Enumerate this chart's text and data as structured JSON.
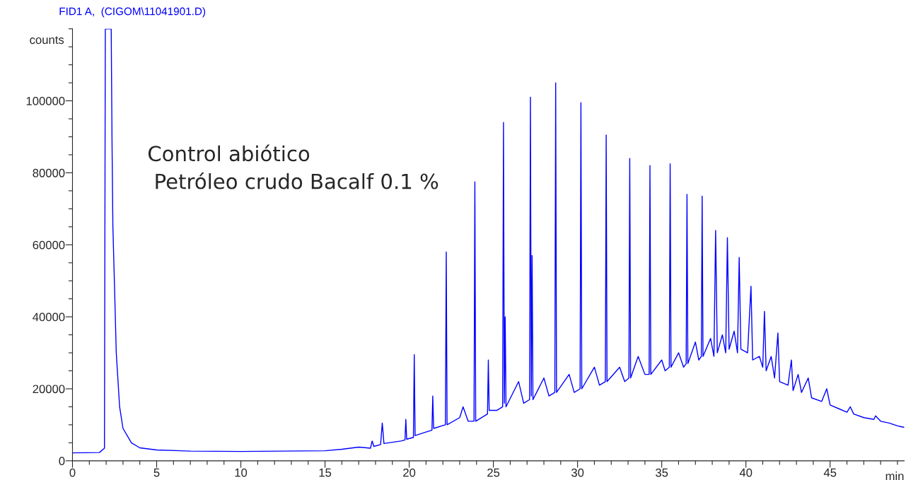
{
  "chart_data": {
    "type": "line",
    "title": "FID1 A,  (CIGOM\\11041901.D)",
    "xlabel": "min",
    "ylabel": "counts",
    "annotations": [
      "Control abiótico\n Petróleo crudo Bacalf 0.1 %"
    ],
    "series": [
      {
        "color": "#0000ff",
        "x": [
          0,
          1.6,
          1.9,
          1.95,
          2.0,
          2.3,
          2.35,
          2.4,
          2.5,
          2.6,
          2.8,
          3.0,
          3.5,
          4.0,
          5.0,
          7.0,
          10.0,
          15.0,
          16.0,
          17.0,
          17.7,
          17.8,
          17.9,
          18.3,
          18.4,
          18.5,
          19.5,
          19.75,
          19.8,
          19.85,
          20.25,
          20.3,
          20.35,
          21.0,
          21.35,
          21.4,
          21.45,
          22.15,
          22.2,
          22.25,
          23.0,
          23.2,
          23.5,
          23.85,
          23.9,
          23.95,
          24.65,
          24.7,
          24.75,
          25.2,
          25.55,
          25.6,
          25.65,
          25.7,
          25.75,
          26.5,
          26.8,
          27.15,
          27.2,
          27.25,
          27.3,
          27.35,
          28.0,
          28.3,
          28.65,
          28.7,
          28.75,
          29.5,
          29.8,
          30.15,
          30.2,
          30.25,
          31.0,
          31.3,
          31.65,
          31.7,
          31.75,
          32.5,
          32.8,
          33.05,
          33.1,
          33.15,
          33.6,
          34.0,
          34.25,
          34.3,
          34.35,
          35.0,
          35.2,
          35.45,
          35.5,
          35.55,
          36.0,
          36.3,
          36.45,
          36.5,
          36.55,
          37.0,
          37.2,
          37.35,
          37.4,
          37.45,
          37.9,
          38.1,
          38.2,
          38.3,
          38.6,
          38.8,
          38.9,
          39.0,
          39.3,
          39.5,
          39.6,
          39.7,
          40.1,
          40.3,
          40.4,
          40.8,
          41.0,
          41.1,
          41.2,
          41.5,
          41.7,
          41.9,
          42.0,
          42.5,
          42.7,
          42.8,
          43.1,
          43.3,
          43.7,
          43.9,
          44.5,
          44.8,
          45.0,
          45.5,
          46.0,
          46.2,
          46.4,
          47.0,
          47.6,
          47.7,
          48.0,
          48.5,
          49.0,
          49.4
        ],
        "values": [
          2200,
          2300,
          3500,
          120000,
          120000,
          120000,
          88000,
          65000,
          48000,
          30000,
          15000,
          9000,
          5000,
          3600,
          3000,
          2700,
          2600,
          2800,
          3200,
          3800,
          3500,
          5500,
          4000,
          4500,
          10500,
          4800,
          5500,
          5800,
          11500,
          6000,
          6500,
          29500,
          7000,
          8000,
          8500,
          18000,
          9000,
          10000,
          58000,
          10000,
          12000,
          15000,
          11000,
          11000,
          77500,
          11000,
          13000,
          28000,
          14000,
          14000,
          15000,
          94000,
          16000,
          40000,
          15000,
          22000,
          16000,
          17000,
          101000,
          18000,
          57000,
          17000,
          23000,
          18000,
          19000,
          105000,
          19000,
          24000,
          19000,
          20000,
          99500,
          20000,
          26000,
          21000,
          22000,
          90500,
          22000,
          26000,
          22000,
          23000,
          84000,
          23000,
          29000,
          24000,
          24000,
          82000,
          24000,
          28000,
          25000,
          26000,
          82500,
          26000,
          30000,
          26000,
          27000,
          74000,
          27000,
          33000,
          28000,
          29000,
          73500,
          29000,
          34000,
          29000,
          64000,
          30000,
          35000,
          30000,
          62000,
          31000,
          36000,
          30000,
          56500,
          31000,
          30000,
          48500,
          28000,
          29000,
          26000,
          41500,
          25000,
          29000,
          23000,
          35500,
          22000,
          21000,
          28000,
          19500,
          24000,
          19000,
          23000,
          17500,
          16500,
          20000,
          15500,
          14500,
          13500,
          15000,
          13000,
          12000,
          11500,
          12500,
          11000,
          10500,
          9700,
          9300
        ]
      }
    ],
    "xlim": [
      0,
      49.4
    ],
    "xticks": [
      0,
      {
        "value": 1,
        "label": null
      },
      {
        "value": 2,
        "label": null
      },
      {
        "value": 3,
        "label": null
      },
      {
        "value": 4,
        "label": null
      },
      5,
      {
        "value": 6,
        "label": null
      },
      {
        "value": 7,
        "label": null
      },
      {
        "value": 8,
        "label": null
      },
      {
        "value": 9,
        "label": null
      },
      10,
      {
        "value": 11,
        "label": null
      },
      {
        "value": 12,
        "label": null
      },
      {
        "value": 13,
        "label": null
      },
      {
        "value": 14,
        "label": null
      },
      15,
      {
        "value": 16,
        "label": null
      },
      {
        "value": 17,
        "label": null
      },
      {
        "value": 18,
        "label": null
      },
      {
        "value": 19,
        "label": null
      },
      20,
      {
        "value": 21,
        "label": null
      },
      {
        "value": 22,
        "label": null
      },
      {
        "value": 23,
        "label": null
      },
      {
        "value": 24,
        "label": null
      },
      25,
      {
        "value": 26,
        "label": null
      },
      {
        "value": 27,
        "label": null
      },
      {
        "value": 28,
        "label": null
      },
      {
        "value": 29,
        "label": null
      },
      30,
      {
        "value": 31,
        "label": null
      },
      {
        "value": 32,
        "label": null
      },
      {
        "value": 33,
        "label": null
      },
      {
        "value": 34,
        "label": null
      },
      35,
      {
        "value": 36,
        "label": null
      },
      {
        "value": 37,
        "label": null
      },
      {
        "value": 38,
        "label": null
      },
      {
        "value": 39,
        "label": null
      },
      40,
      {
        "value": 41,
        "label": null
      },
      {
        "value": 42,
        "label": null
      },
      {
        "value": 43,
        "label": null
      },
      {
        "value": 44,
        "label": null
      },
      45,
      {
        "value": 46,
        "label": null
      },
      {
        "value": 47,
        "label": null
      },
      {
        "value": 48,
        "label": null
      },
      {
        "value": 49,
        "label": null
      }
    ],
    "ylim": [
      0,
      120000
    ],
    "yticks": [
      0,
      {
        "value": 5000,
        "label": null
      },
      {
        "value": 10000,
        "label": null
      },
      {
        "value": 15000,
        "label": null
      },
      20000,
      {
        "value": 25000,
        "label": null
      },
      {
        "value": 30000,
        "label": null
      },
      {
        "value": 35000,
        "label": null
      },
      40000,
      {
        "value": 45000,
        "label": null
      },
      {
        "value": 50000,
        "label": null
      },
      {
        "value": 55000,
        "label": null
      },
      60000,
      {
        "value": 65000,
        "label": null
      },
      {
        "value": 70000,
        "label": null
      },
      {
        "value": 75000,
        "label": null
      },
      80000,
      {
        "value": 85000,
        "label": null
      },
      {
        "value": 90000,
        "label": null
      },
      {
        "value": 95000,
        "label": null
      },
      100000,
      {
        "value": 105000,
        "label": null
      },
      {
        "value": 110000,
        "label": null
      },
      {
        "value": 115000,
        "label": null
      },
      {
        "value": 120000,
        "label": null
      }
    ],
    "grid": false,
    "legend": false,
    "marker": "none",
    "line_style": "solid"
  }
}
